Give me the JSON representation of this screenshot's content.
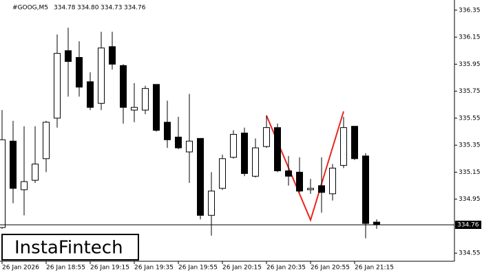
{
  "chart_data": {
    "type": "candlestick",
    "title": "#GOOG,M5",
    "header_values": [
      "334.78",
      "334.80",
      "334.73",
      "334.76"
    ],
    "watermark": "InstaFintech",
    "categories": [
      "26 Jan 2026",
      null,
      null,
      null,
      "26 Jan 18:55",
      null,
      null,
      null,
      "26 Jan 19:15",
      null,
      null,
      null,
      "26 Jan 19:35",
      null,
      null,
      null,
      "26 Jan 19:55",
      null,
      null,
      null,
      "26 Jan 20:15",
      null,
      null,
      null,
      "26 Jan 20:35",
      null,
      null,
      null,
      "26 Jan 20:55",
      null,
      null,
      null,
      "26 Jan 21:15",
      null,
      null
    ],
    "open": [
      334.74,
      335.38,
      335.02,
      335.09,
      335.25,
      335.55,
      336.05,
      336.0,
      335.82,
      335.66,
      336.08,
      335.94,
      335.61,
      335.61,
      335.8,
      335.52,
      335.41,
      335.3,
      335.4,
      334.83,
      335.03,
      335.26,
      335.44,
      335.12,
      335.34,
      335.48,
      335.16,
      335.15,
      335.02,
      335.05,
      334.99,
      335.2,
      335.49,
      335.27,
      334.78
    ],
    "high": [
      335.61,
      335.53,
      335.49,
      335.49,
      335.53,
      336.17,
      336.22,
      336.12,
      335.89,
      336.19,
      336.19,
      335.95,
      335.81,
      335.79,
      335.8,
      335.68,
      335.56,
      335.73,
      335.4,
      335.15,
      335.28,
      335.46,
      335.48,
      335.4,
      335.57,
      335.51,
      335.27,
      335.26,
      335.1,
      335.26,
      335.21,
      335.56,
      335.49,
      335.29,
      334.8
    ],
    "low": [
      334.73,
      334.92,
      334.83,
      335.07,
      335.15,
      335.48,
      335.71,
      335.71,
      335.61,
      335.61,
      335.91,
      335.51,
      335.52,
      335.58,
      335.45,
      335.33,
      335.32,
      335.07,
      334.8,
      334.68,
      335.02,
      335.25,
      335.12,
      335.11,
      335.33,
      335.15,
      335.05,
      335.0,
      334.99,
      334.85,
      334.94,
      335.18,
      335.24,
      334.66,
      334.73
    ],
    "close": [
      335.39,
      335.03,
      335.08,
      335.21,
      335.52,
      336.03,
      335.97,
      335.78,
      335.63,
      336.07,
      335.95,
      335.63,
      335.63,
      335.77,
      335.46,
      335.39,
      335.33,
      335.38,
      334.83,
      335.01,
      335.25,
      335.43,
      335.14,
      335.33,
      335.48,
      335.16,
      335.12,
      335.01,
      335.03,
      335.0,
      335.18,
      335.48,
      335.25,
      334.77,
      334.76
    ],
    "up_color": "#ffffff",
    "down_color": "#000000",
    "ylim": [
      334.49,
      336.4
    ],
    "yticks": [
      336.35,
      336.15,
      335.95,
      335.75,
      335.55,
      335.35,
      335.15,
      334.95,
      334.55
    ]
  }
}
